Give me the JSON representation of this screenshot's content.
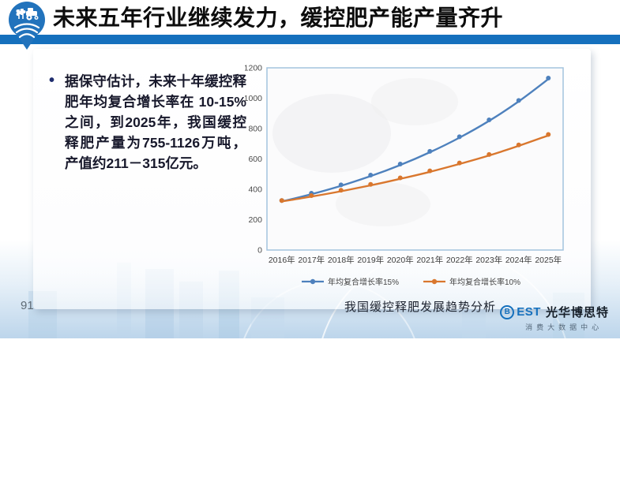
{
  "header": {
    "title": "未来五年行业继续发力，缓控肥产能产量齐升"
  },
  "body": {
    "bullet_text": "据保守估计，未来十年缓控释肥年均复合增长率在 10-15% 之间，到2025年，我国缓控释肥产量为755-1126万吨，产值约211－315亿元。"
  },
  "chart_data": {
    "type": "line",
    "title": "我国缓控释肥发展趋势分析",
    "categories": [
      "2016年",
      "2017年",
      "2018年",
      "2019年",
      "2020年",
      "2021年",
      "2022年",
      "2023年",
      "2024年",
      "2025年"
    ],
    "series": [
      {
        "name": "年均复合增长率15%",
        "color": "#4E81BD",
        "values": [
          320,
          368,
          423,
          487,
          560,
          644,
          740,
          851,
          979,
          1126
        ]
      },
      {
        "name": "年均复合增长率10%",
        "color": "#D9772E",
        "values": [
          320,
          352,
          387,
          426,
          469,
          515,
          567,
          623,
          686,
          755
        ]
      }
    ],
    "ylim": [
      0,
      1200
    ],
    "ytick_interval": 200,
    "grid": false,
    "legend_position": "bottom",
    "smooth_lines": true,
    "markers": "circle"
  },
  "footer": {
    "page_number": "91",
    "brand_icon_letter": "B",
    "brand_latin": "EST",
    "brand_name": "光华博思特",
    "brand_subtitle": "消费大数据中心"
  },
  "colors": {
    "header_bar": "#1570BD",
    "logo_blue": "#2273BC",
    "series_15pct": "#4E81BD",
    "series_10pct": "#D9772E",
    "plot_border": "#A3C4DE",
    "axis_text": "#4a4a4a"
  }
}
